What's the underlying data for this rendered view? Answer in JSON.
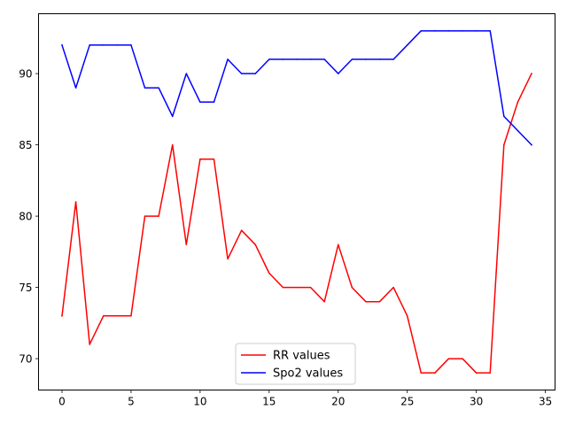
{
  "chart_data": {
    "type": "line",
    "title": "",
    "xlabel": "",
    "ylabel": "",
    "xlim": [
      -1.7,
      35.7
    ],
    "ylim": [
      67.8,
      94.2
    ],
    "x_ticks": [
      0,
      5,
      10,
      15,
      20,
      25,
      30,
      35
    ],
    "y_ticks": [
      70,
      75,
      80,
      85,
      90
    ],
    "grid": false,
    "legend_position": "bottom-center",
    "x": [
      0,
      1,
      2,
      3,
      4,
      5,
      6,
      7,
      8,
      9,
      10,
      11,
      12,
      13,
      14,
      15,
      16,
      17,
      18,
      19,
      20,
      21,
      22,
      23,
      24,
      25,
      26,
      27,
      28,
      29,
      30,
      31,
      32,
      33,
      34
    ],
    "series": [
      {
        "name": "RR values",
        "color": "#ff0000",
        "values": [
          73,
          81,
          71,
          73,
          73,
          73,
          80,
          80,
          85,
          78,
          84,
          84,
          77,
          79,
          78,
          76,
          75,
          75,
          75,
          74,
          78,
          75,
          74,
          74,
          75,
          73,
          69,
          69,
          70,
          70,
          69,
          69,
          85,
          88,
          90
        ]
      },
      {
        "name": "Spo2 values",
        "color": "#0000ff",
        "values": [
          92,
          89,
          92,
          92,
          92,
          92,
          89,
          89,
          87,
          90,
          88,
          88,
          91,
          90,
          90,
          91,
          91,
          91,
          91,
          91,
          90,
          91,
          91,
          91,
          91,
          92,
          93,
          93,
          93,
          93,
          93,
          93,
          87,
          86,
          85
        ]
      }
    ]
  }
}
